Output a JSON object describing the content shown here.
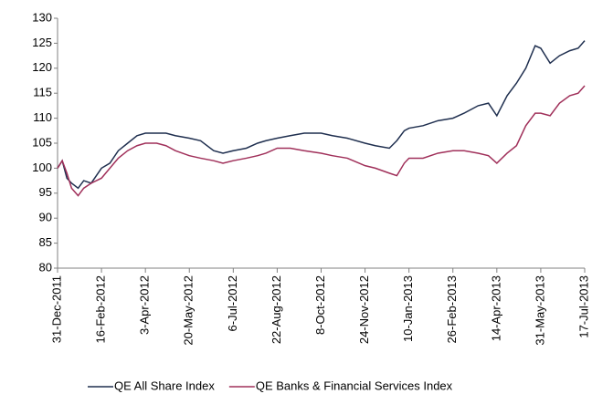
{
  "chart_data": {
    "type": "line",
    "x": [
      "2011-12-31",
      "2012-01-05",
      "2012-01-10",
      "2012-01-15",
      "2012-01-22",
      "2012-01-28",
      "2012-02-05",
      "2012-02-16",
      "2012-02-25",
      "2012-03-05",
      "2012-03-15",
      "2012-03-25",
      "2012-04-03",
      "2012-04-15",
      "2012-04-25",
      "2012-05-05",
      "2012-05-20",
      "2012-06-01",
      "2012-06-15",
      "2012-06-25",
      "2012-07-06",
      "2012-07-20",
      "2012-08-01",
      "2012-08-10",
      "2012-08-22",
      "2012-09-05",
      "2012-09-20",
      "2012-10-08",
      "2012-10-20",
      "2012-11-05",
      "2012-11-24",
      "2012-12-05",
      "2012-12-20",
      "2012-12-28",
      "2013-01-05",
      "2013-01-10",
      "2013-01-25",
      "2013-02-10",
      "2013-02-26",
      "2013-03-10",
      "2013-03-25",
      "2013-04-05",
      "2013-04-14",
      "2013-04-25",
      "2013-05-05",
      "2013-05-15",
      "2013-05-25",
      "2013-05-31",
      "2013-06-10",
      "2013-06-20",
      "2013-07-01",
      "2013-07-10",
      "2013-07-17"
    ],
    "series": [
      {
        "name": "QE All Share Index",
        "color": "#1f2f4f",
        "values": [
          100,
          101.5,
          98,
          97,
          96,
          97.5,
          97,
          100,
          101,
          103.5,
          105,
          106.5,
          107,
          107,
          107,
          106.5,
          106,
          105.5,
          103.5,
          103,
          103.5,
          104,
          105,
          105.5,
          106,
          106.5,
          107,
          107,
          106.5,
          106,
          105,
          104.5,
          104,
          105.5,
          107.5,
          108,
          108.5,
          109.5,
          110,
          111,
          112.5,
          113,
          110.5,
          114.5,
          117,
          120,
          124.5,
          124,
          121,
          122.5,
          123.5,
          124,
          125.5
        ]
      },
      {
        "name": "QE Banks & Financial Services Index",
        "color": "#a0305a",
        "values": [
          100,
          101.5,
          99,
          96,
          94.5,
          96,
          97,
          98,
          100,
          102,
          103.5,
          104.5,
          105,
          105,
          104.5,
          103.5,
          102.5,
          102,
          101.5,
          101,
          101.5,
          102,
          102.5,
          103,
          104,
          104,
          103.5,
          103,
          102.5,
          102,
          100.5,
          100,
          99,
          98.5,
          101,
          102,
          102,
          103,
          103.5,
          103.5,
          103,
          102.5,
          101,
          103,
          104.5,
          108.5,
          111,
          111,
          110.5,
          113,
          114.5,
          115,
          116.5
        ]
      }
    ],
    "xlim": [
      "2011-12-31",
      "2013-07-17"
    ],
    "xticks": [
      {
        "value": "2011-12-31",
        "label": "31-Dec-2011"
      },
      {
        "value": "2012-02-16",
        "label": "16-Feb-2012"
      },
      {
        "value": "2012-04-03",
        "label": "3-Apr-2012"
      },
      {
        "value": "2012-05-20",
        "label": "20-May-2012"
      },
      {
        "value": "2012-07-06",
        "label": "6-Jul-2012"
      },
      {
        "value": "2012-08-22",
        "label": "22-Aug-2012"
      },
      {
        "value": "2012-10-08",
        "label": "8-Oct-2012"
      },
      {
        "value": "2012-11-24",
        "label": "24-Nov-2012"
      },
      {
        "value": "2013-01-10",
        "label": "10-Jan-2013"
      },
      {
        "value": "2013-02-26",
        "label": "26-Feb-2013"
      },
      {
        "value": "2013-04-14",
        "label": "14-Apr-2013"
      },
      {
        "value": "2013-05-31",
        "label": "31-May-2013"
      },
      {
        "value": "2013-07-17",
        "label": "17-Jul-2013"
      }
    ],
    "ylim": [
      80,
      130
    ],
    "yticks": [
      80,
      85,
      90,
      95,
      100,
      105,
      110,
      115,
      120,
      125,
      130
    ],
    "grid": false,
    "legend": "bottom"
  }
}
